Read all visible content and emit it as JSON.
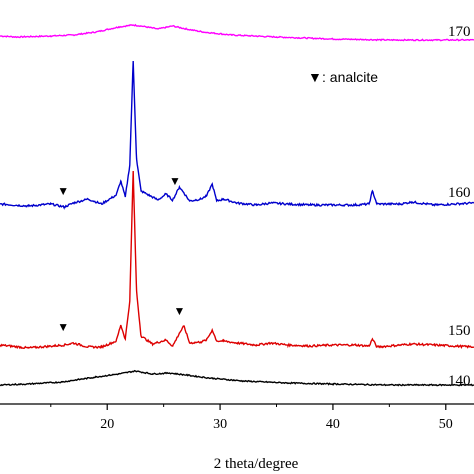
{
  "chart_data": {
    "type": "line",
    "title": "",
    "xlabel": "2 theta/degree",
    "ylabel": "",
    "xlim": [
      10.5,
      52.5
    ],
    "x_ticks": [
      20,
      30,
      40,
      50
    ],
    "y_ticks": "none",
    "grid": false,
    "legend": {
      "placement": "top-right",
      "marker": "▼",
      "label": ": analcite"
    },
    "series": [
      {
        "name": "170",
        "color": "#ff00ff",
        "baseline": 0,
        "points": [
          [
            10.5,
            4
          ],
          [
            12,
            3
          ],
          [
            15,
            4
          ],
          [
            17,
            5
          ],
          [
            19,
            8
          ],
          [
            21,
            13
          ],
          [
            22.3,
            15
          ],
          [
            23,
            14
          ],
          [
            24.5,
            11
          ],
          [
            25.8,
            14
          ],
          [
            27,
            11
          ],
          [
            28.5,
            8
          ],
          [
            31,
            5
          ],
          [
            35,
            3
          ],
          [
            40,
            1
          ],
          [
            45,
            0
          ],
          [
            52.5,
            0
          ]
        ]
      },
      {
        "name": "160",
        "color": "#0000cc",
        "baseline": 4,
        "points": [
          [
            10.5,
            5
          ],
          [
            13,
            3
          ],
          [
            15,
            5
          ],
          [
            16.2,
            2
          ],
          [
            17,
            6
          ],
          [
            18.3,
            10
          ],
          [
            19.5,
            5
          ],
          [
            20.8,
            14
          ],
          [
            21.2,
            28
          ],
          [
            21.6,
            12
          ],
          [
            22,
            44
          ],
          [
            22.3,
            148
          ],
          [
            22.6,
            50
          ],
          [
            23,
            18
          ],
          [
            24.5,
            9
          ],
          [
            25.2,
            15
          ],
          [
            25.8,
            9
          ],
          [
            26.4,
            22
          ],
          [
            26.8,
            16
          ],
          [
            27.3,
            8
          ],
          [
            28.3,
            10
          ],
          [
            28.8,
            13
          ],
          [
            29.3,
            25
          ],
          [
            29.7,
            8
          ],
          [
            30.3,
            10
          ],
          [
            31.5,
            6
          ],
          [
            33.2,
            4
          ],
          [
            34.5,
            6
          ],
          [
            36,
            5
          ],
          [
            38,
            4
          ],
          [
            40,
            4
          ],
          [
            42,
            4
          ],
          [
            43.2,
            5
          ],
          [
            43.5,
            18
          ],
          [
            43.9,
            5
          ],
          [
            46,
            5
          ],
          [
            47,
            7
          ],
          [
            49,
            4
          ],
          [
            52.5,
            6
          ]
        ]
      },
      {
        "name": "150",
        "color": "#dd0000",
        "baseline": 0,
        "points": [
          [
            10.5,
            6
          ],
          [
            13,
            3
          ],
          [
            16.2,
            6
          ],
          [
            17,
            8
          ],
          [
            18.3,
            4
          ],
          [
            19.5,
            4
          ],
          [
            20.8,
            10
          ],
          [
            21.2,
            26
          ],
          [
            21.6,
            12
          ],
          [
            22,
            50
          ],
          [
            22.3,
            180
          ],
          [
            22.6,
            60
          ],
          [
            23,
            15
          ],
          [
            24,
            7
          ],
          [
            25.2,
            11
          ],
          [
            25.8,
            5
          ],
          [
            26.4,
            18
          ],
          [
            26.8,
            25
          ],
          [
            27.3,
            8
          ],
          [
            28.3,
            9
          ],
          [
            28.8,
            11
          ],
          [
            29.3,
            21
          ],
          [
            29.7,
            10
          ],
          [
            30.3,
            10
          ],
          [
            31.5,
            8
          ],
          [
            33.2,
            6
          ],
          [
            34.5,
            8
          ],
          [
            36,
            6
          ],
          [
            38,
            5
          ],
          [
            40,
            6
          ],
          [
            42,
            6
          ],
          [
            43.2,
            5
          ],
          [
            43.5,
            12
          ],
          [
            43.9,
            4
          ],
          [
            46,
            6
          ],
          [
            47,
            7
          ],
          [
            49,
            6
          ],
          [
            52.5,
            4
          ]
        ]
      },
      {
        "name": "140",
        "color": "#000000",
        "baseline": 0,
        "points": [
          [
            10.5,
            0
          ],
          [
            13,
            1
          ],
          [
            16,
            3
          ],
          [
            19,
            8
          ],
          [
            21,
            11
          ],
          [
            22.5,
            14
          ],
          [
            24,
            11
          ],
          [
            25.5,
            12
          ],
          [
            27,
            10
          ],
          [
            29,
            7
          ],
          [
            32,
            4
          ],
          [
            36,
            2
          ],
          [
            40,
            1
          ],
          [
            45,
            0
          ],
          [
            52.5,
            0
          ]
        ]
      }
    ],
    "markers": [
      {
        "x": 16.1,
        "series": "160",
        "y": 14
      },
      {
        "x": 26.0,
        "series": "160",
        "y": 24
      },
      {
        "x": 16.1,
        "series": "150",
        "y": 20
      },
      {
        "x": 26.4,
        "series": "150",
        "y": 36
      }
    ]
  }
}
